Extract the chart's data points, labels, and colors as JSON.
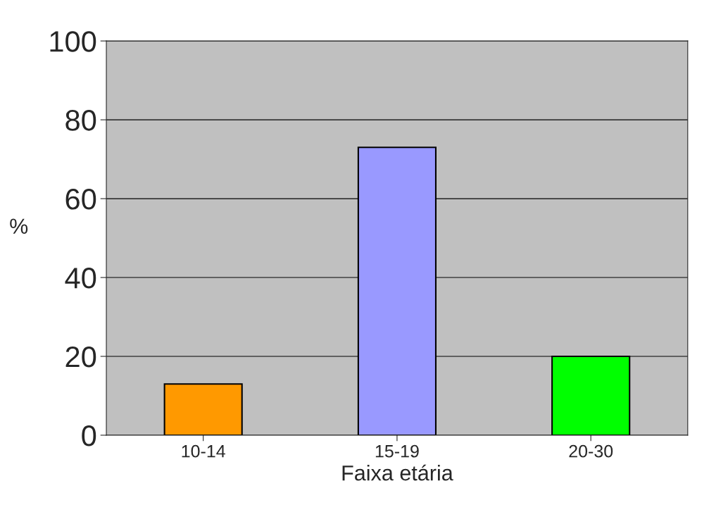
{
  "chart_data": {
    "type": "bar",
    "xlabel": "Faixa etária",
    "ylabel": "%",
    "categories": [
      "10-14",
      "15-19",
      "20-30"
    ],
    "values": [
      13,
      73,
      20
    ],
    "colors": [
      "#ff9900",
      "#9999ff",
      "#00ff00"
    ],
    "ylim": [
      0,
      100
    ],
    "yticks": [
      0,
      20,
      40,
      60,
      80,
      100
    ],
    "grid": "y"
  }
}
